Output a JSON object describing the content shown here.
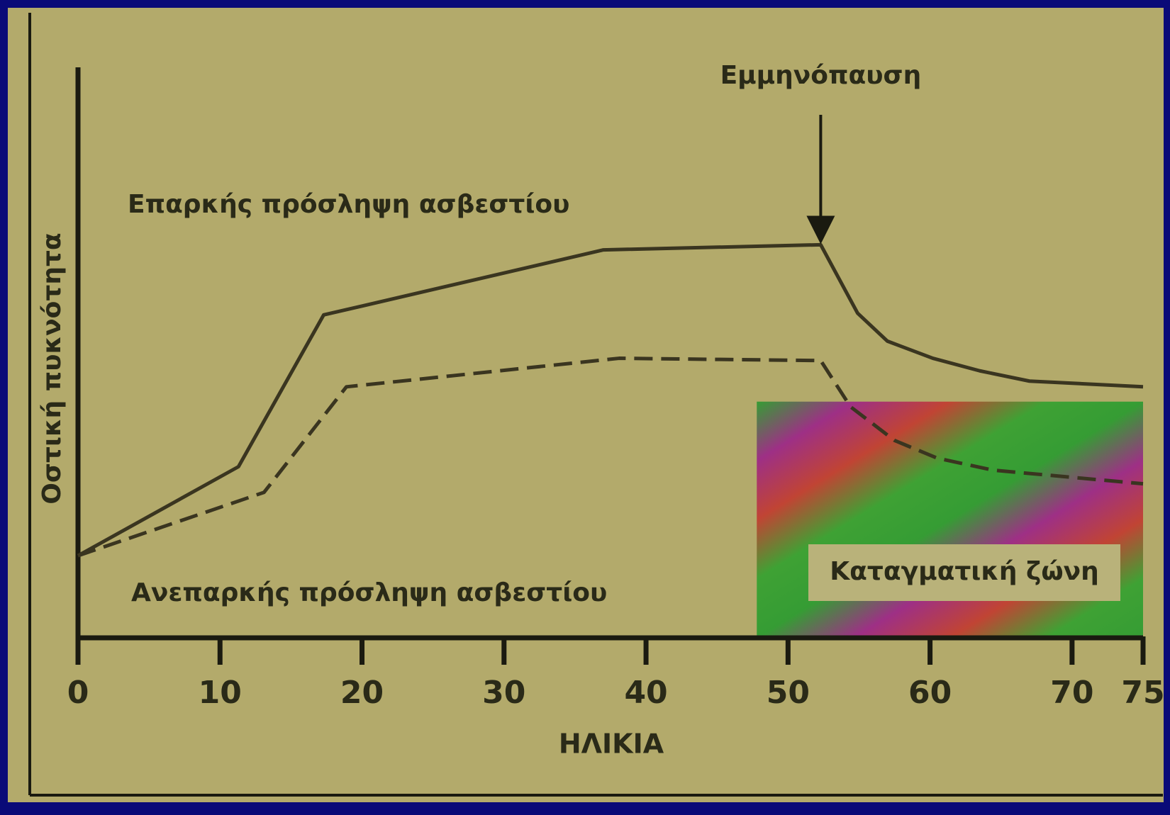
{
  "chart_data": {
    "type": "line",
    "x_label": "ΗΛΙΚΙΑ",
    "y_label": "Οστική πυκνότητα",
    "series": [
      {
        "name": "Επαρκής πρόσληψη ασβεστίου",
        "color": "#3a3520",
        "line_style": "solid",
        "x": [
          0,
          11.3,
          17.3,
          37,
          52.3,
          54.9,
          57,
          60.2,
          63.5,
          67,
          75
        ],
        "values": [
          14.4,
          30,
          56.6,
          68,
          68.9,
          56.9,
          52,
          49,
          46.8,
          45,
          44
        ]
      },
      {
        "name": "Ανεπαρκής πρόσληψη ασβεστίου",
        "color": "#3a3520",
        "line_style": "dashed",
        "x": [
          0,
          13.1,
          18.9,
          38.1,
          52.3,
          54.4,
          57.5,
          60.5,
          64.4,
          75
        ],
        "values": [
          14.4,
          25.5,
          44,
          49,
          48.6,
          40.5,
          34.6,
          31.5,
          29.4,
          27
        ]
      }
    ],
    "xlim": [
      0,
      75
    ],
    "xticks": [
      0,
      10,
      20,
      30,
      40,
      50,
      60,
      70,
      75
    ],
    "ylim": [
      0,
      100
    ],
    "annotations": [
      {
        "text": "Εμμηνόπαυση",
        "x": 52.3,
        "y": 69
      }
    ],
    "fracture_zone": {
      "label": "Καταγματική ζώνη",
      "xlim": [
        47.8,
        75
      ],
      "ylim": [
        0,
        41.4
      ]
    }
  }
}
